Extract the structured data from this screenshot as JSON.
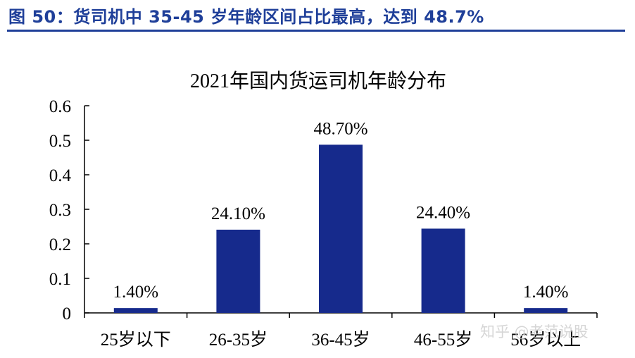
{
  "figure_title": "图 50：货司机中 35-45 岁年龄区间占比最高，达到 48.7%",
  "watermark": "知乎 @老范说股",
  "colors": {
    "bar": "#162a8c",
    "title": "#1f3f99",
    "axis": "#000000"
  },
  "chart_data": {
    "type": "bar",
    "title": "2021年国内货运司机年龄分布",
    "categories": [
      "25岁以下",
      "26-35岁",
      "36-45岁",
      "46-55岁",
      "56岁以上"
    ],
    "values": [
      0.014,
      0.241,
      0.487,
      0.244,
      0.014
    ],
    "data_labels": [
      "1.40%",
      "24.10%",
      "48.70%",
      "24.40%",
      "1.40%"
    ],
    "ylim": [
      0,
      0.6
    ],
    "yticks": [
      0,
      0.1,
      0.2,
      0.3,
      0.4,
      0.5,
      0.6
    ],
    "ytick_labels": [
      "0",
      "0.1",
      "0.2",
      "0.3",
      "0.4",
      "0.5",
      "0.6"
    ],
    "xlabel": "",
    "ylabel": "",
    "grid": false,
    "legend": false
  }
}
